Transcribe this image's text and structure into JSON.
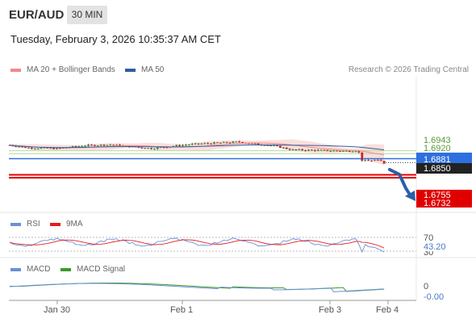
{
  "header": {
    "symbol": "EUR/AUD",
    "timeframe": "30 MIN",
    "datetime": "Tuesday, February 3, 2026 10:35:37 AM CET",
    "copyright": "Research © 2026 Trading Central"
  },
  "legends": {
    "ma20": {
      "label": "MA 20 + Bollinger Bands",
      "color": "#f08a8a"
    },
    "ma50": {
      "label": "MA 50",
      "color": "#2f5e9e"
    },
    "rsi": {
      "label": "RSI",
      "color": "#6a8fd8"
    },
    "rsi9": {
      "label": "9MA",
      "color": "#e02020"
    },
    "macd": {
      "label": "MACD",
      "color": "#6a8fd8"
    },
    "macdSignal": {
      "label": "MACD Signal",
      "color": "#3a9a2a"
    }
  },
  "chart_data": {
    "type": "candlestick",
    "x_ticks": [
      "Jan 30",
      "Feb 1",
      "Feb 3",
      "Feb 4"
    ],
    "y_range": [
      1.672,
      1.708
    ],
    "current_price": {
      "value": "1.6881",
      "color": "#2d6fe0"
    },
    "levels": [
      {
        "value": "1.6943",
        "kind": "resistance",
        "color": "#8fc46a"
      },
      {
        "value": "1.6920",
        "kind": "resistance",
        "color": "#8fc46a"
      },
      {
        "value": "1.6850",
        "kind": "pivot",
        "color": "#222222"
      },
      {
        "value": "1.6755",
        "kind": "support",
        "color": "#e00000"
      },
      {
        "value": "1.6732",
        "kind": "support",
        "color": "#e00000"
      }
    ],
    "rsi": {
      "levels": [
        "70",
        "30"
      ],
      "current": "43.20"
    },
    "macd": {
      "zero": "0",
      "current": "-0.00"
    }
  }
}
